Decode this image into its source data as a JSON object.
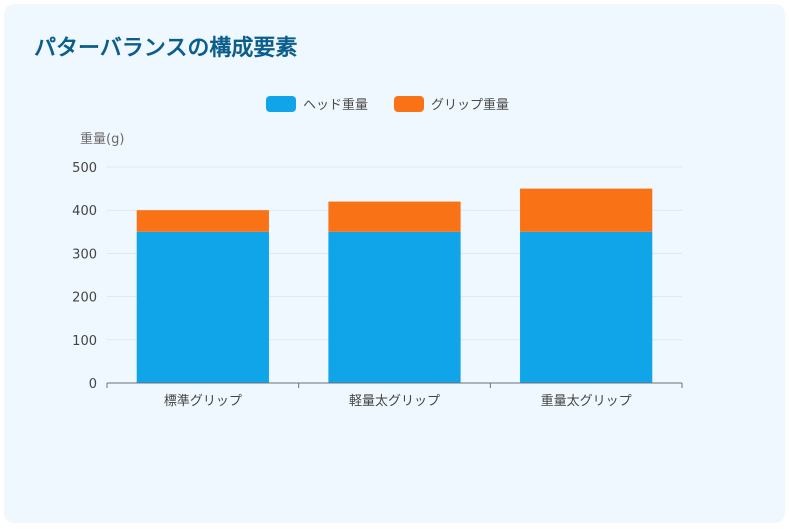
{
  "title": "パターバランスの構成要素",
  "chart_data": {
    "type": "bar",
    "stacked": true,
    "categories": [
      "標準グリップ",
      "軽量太グリップ",
      "重量太グリップ"
    ],
    "series": [
      {
        "name": "ヘッド重量",
        "values": [
          350,
          350,
          350
        ],
        "color": "#10a5e9"
      },
      {
        "name": "グリップ重量",
        "values": [
          50,
          70,
          100
        ],
        "color": "#f97316"
      }
    ],
    "xlabel": "",
    "ylabel": "重量(g)",
    "ylim": [
      0,
      500
    ],
    "yticks": [
      0,
      100,
      200,
      300,
      400,
      500
    ],
    "grid": true,
    "legend": "top-center"
  }
}
